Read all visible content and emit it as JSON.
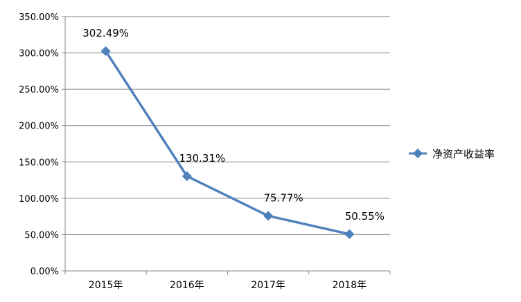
{
  "chart_data": {
    "type": "line",
    "categories": [
      "2015年",
      "2016年",
      "2017年",
      "2018年"
    ],
    "series": [
      {
        "name": "净资产收益率",
        "values": [
          302.49,
          130.31,
          75.77,
          50.55
        ],
        "data_labels": [
          "302.49%",
          "130.31%",
          "75.77%",
          "50.55%"
        ],
        "color": "#4f81bd",
        "marker": "diamond"
      }
    ],
    "y_ticks": [
      "0.00%",
      "50.00%",
      "100.00%",
      "150.00%",
      "200.00%",
      "250.00%",
      "300.00%",
      "350.00%"
    ],
    "ylim": [
      0,
      350
    ],
    "y_step": 50,
    "y_unit": "%",
    "grid": true,
    "grid_color": "#868686",
    "legend": {
      "position": "right",
      "entries": [
        "净资产收益率"
      ]
    }
  }
}
